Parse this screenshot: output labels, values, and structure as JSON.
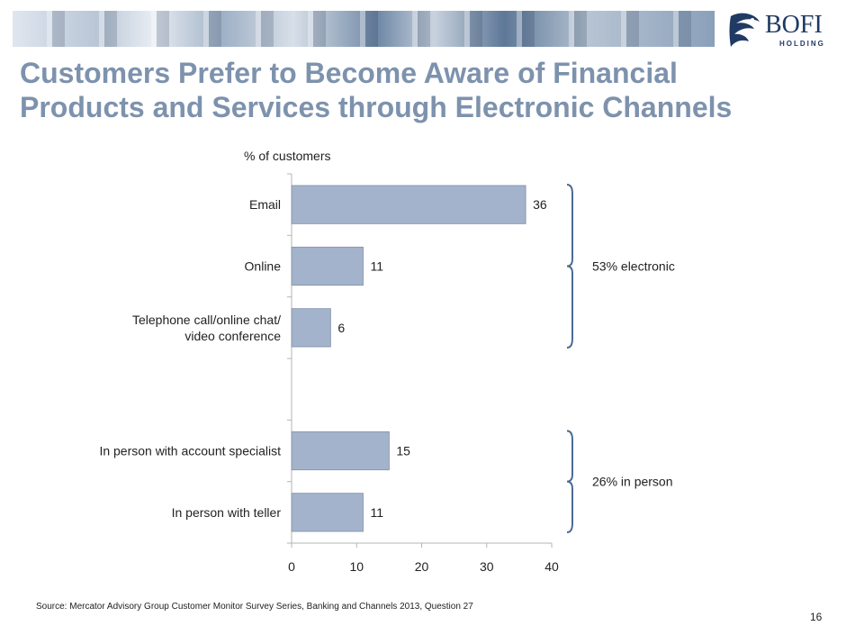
{
  "header": {
    "logo_text": "BOFI",
    "logo_sub": "HOLDING"
  },
  "title": {
    "line1": "Customers Prefer to Become Aware of Financial",
    "line2": "Products and Services through Electronic Channels"
  },
  "chart_data": {
    "type": "bar",
    "orientation": "horizontal",
    "unit_label": "% of customers",
    "categories": [
      "Email",
      "Online",
      "Telephone call/online chat/ video conference",
      "",
      "In person with account specialist",
      "In person with teller"
    ],
    "values": [
      36,
      11,
      6,
      null,
      15,
      11
    ],
    "xlim": [
      0,
      40
    ],
    "x_ticks": [
      0,
      10,
      20,
      30,
      40
    ],
    "grid": false,
    "bar_color": "#a3b3cb",
    "annotations": [
      {
        "text": "53% electronic",
        "groups": [
          "Email",
          "Online",
          "Telephone call/online chat/ video conference"
        ]
      },
      {
        "text": "26% in person",
        "groups": [
          "In person with account specialist",
          "In person with teller"
        ]
      }
    ]
  },
  "footer": {
    "source": "Source:  Mercator Advisory Group Customer Monitor Survey Series, Banking and Channels 2013, Question 27",
    "page_number": "16"
  },
  "colors": {
    "title": "#7d92ad",
    "bar": "#a3b3cb",
    "brace": "#4b6b92",
    "brand": "#1f3a63"
  }
}
